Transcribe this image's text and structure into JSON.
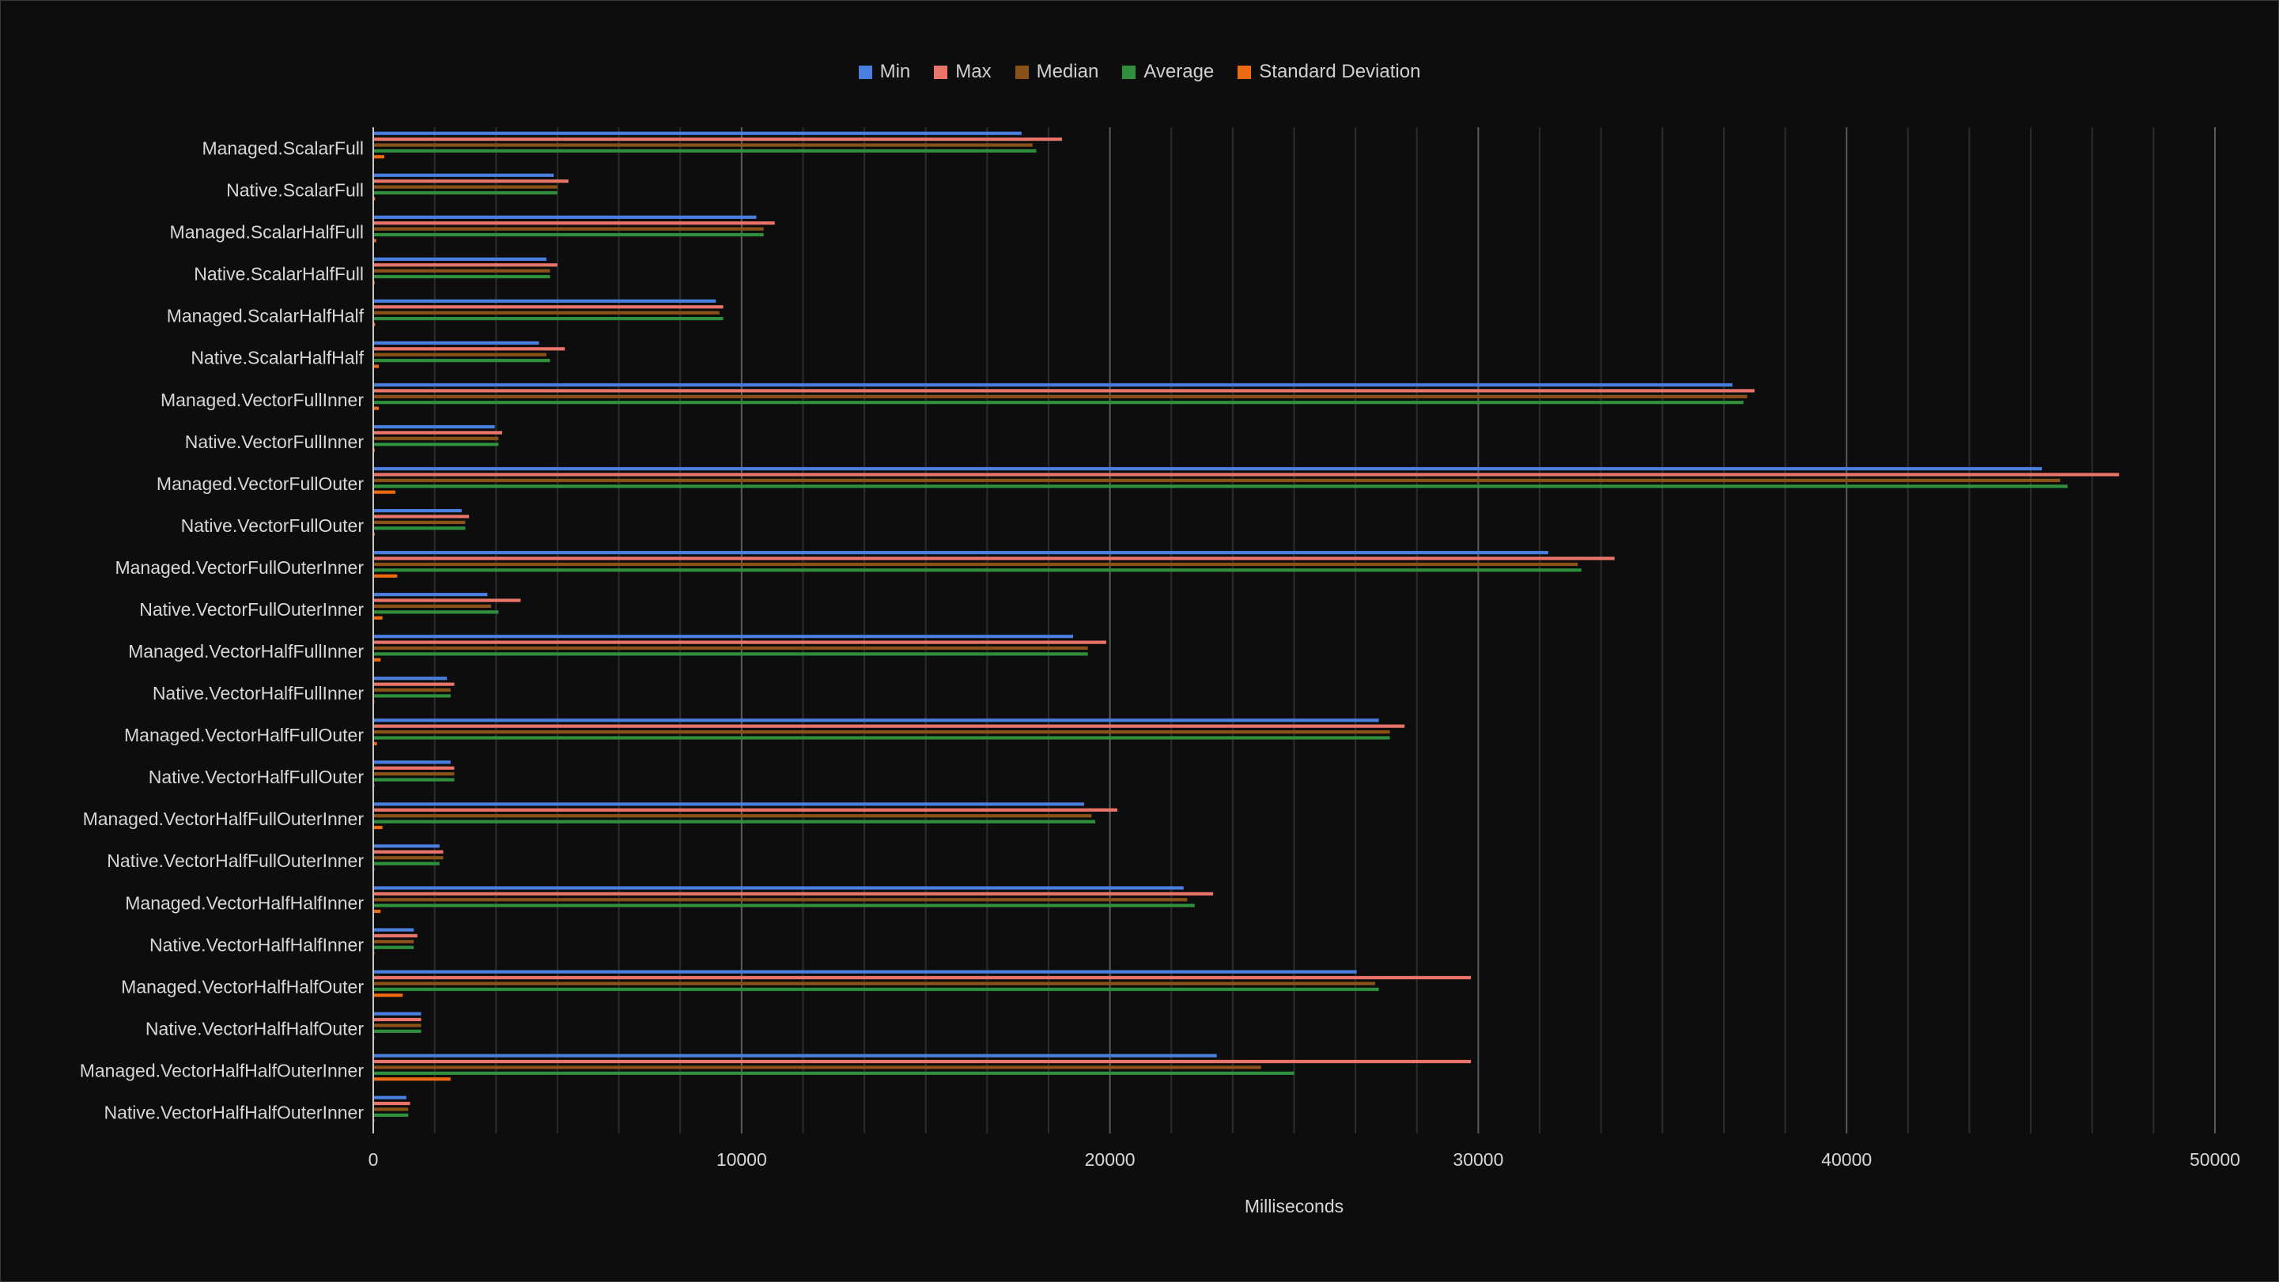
{
  "chart_data": {
    "type": "bar",
    "orientation": "horizontal",
    "title": "",
    "xlabel": "Milliseconds",
    "ylabel": "",
    "xlim": [
      0,
      50000
    ],
    "x_ticks": [
      "0",
      "10000",
      "20000",
      "30000",
      "40000",
      "50000"
    ],
    "grid": true,
    "legend_position": "top",
    "categories": [
      "Managed.ScalarFull",
      "Native.ScalarFull",
      "Managed.ScalarHalfFull",
      "Native.ScalarHalfFull",
      "Managed.ScalarHalfHalf",
      "Native.ScalarHalfHalf",
      "Managed.VectorFullInner",
      "Native.VectorFullInner",
      "Managed.VectorFullOuter",
      "Native.VectorFullOuter",
      "Managed.VectorFullOuterInner",
      "Native.VectorFullOuterInner",
      "Managed.VectorHalfFullInner",
      "Native.VectorHalfFullInner",
      "Managed.VectorHalfFullOuter",
      "Native.VectorHalfFullOuter",
      "Managed.VectorHalfFullOuterInner",
      "Native.VectorHalfFullOuterInner",
      "Managed.VectorHalfHalfInner",
      "Native.VectorHalfHalfInner",
      "Managed.VectorHalfHalfOuter",
      "Native.VectorHalfHalfOuter",
      "Managed.VectorHalfHalfOuterInner",
      "Native.VectorHalfHalfOuterInner"
    ],
    "series": [
      {
        "name": "Min",
        "color": "#4a7fe0",
        "values": [
          17600,
          4900,
          10400,
          4700,
          9300,
          4500,
          36900,
          3300,
          45300,
          2400,
          31900,
          3100,
          19000,
          2000,
          27300,
          2100,
          19300,
          1800,
          22000,
          1100,
          26700,
          1300,
          22900,
          900
        ]
      },
      {
        "name": "Max",
        "color": "#e8746a",
        "values": [
          18700,
          5300,
          10900,
          5000,
          9500,
          5200,
          37500,
          3500,
          47400,
          2600,
          33700,
          4000,
          19900,
          2200,
          28000,
          2200,
          20200,
          1900,
          22800,
          1200,
          29800,
          1300,
          29800,
          1000
        ]
      },
      {
        "name": "Median",
        "color": "#8a5219",
        "values": [
          17900,
          5000,
          10600,
          4800,
          9400,
          4700,
          37300,
          3400,
          45800,
          2500,
          32700,
          3200,
          19400,
          2100,
          27600,
          2200,
          19500,
          1900,
          22100,
          1100,
          27200,
          1300,
          24100,
          950
        ]
      },
      {
        "name": "Average",
        "color": "#2f8f3d",
        "values": [
          18000,
          5000,
          10600,
          4800,
          9500,
          4800,
          37200,
          3400,
          46000,
          2500,
          32800,
          3400,
          19400,
          2100,
          27600,
          2200,
          19600,
          1800,
          22300,
          1100,
          27300,
          1300,
          25000,
          950
        ]
      },
      {
        "name": "Standard Deviation",
        "color": "#ee6a10",
        "values": [
          300,
          50,
          80,
          40,
          50,
          150,
          150,
          40,
          600,
          40,
          650,
          250,
          200,
          30,
          100,
          30,
          250,
          30,
          200,
          30,
          800,
          30,
          2100,
          30
        ]
      }
    ]
  }
}
